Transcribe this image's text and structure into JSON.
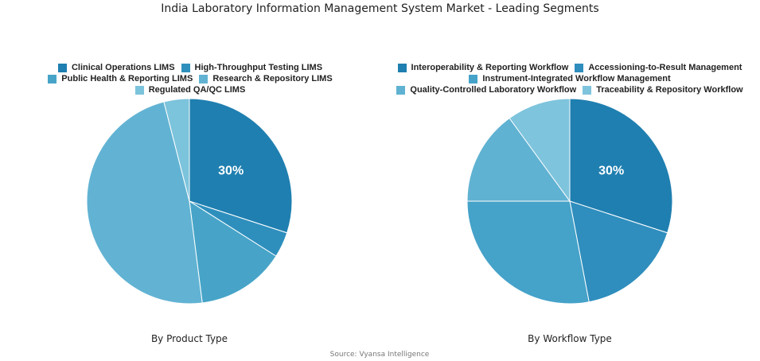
{
  "title": "India Laboratory Information Management System Market - Leading Segments",
  "source": "Source: Vyansa Intelligence",
  "chart_data": [
    {
      "type": "pie",
      "title": "By Product Type",
      "categories": [
        "Clinical Operations LIMS",
        "High-Throughput Testing LIMS",
        "Public Health & Reporting LIMS",
        "Research & Repository LIMS",
        "Regulated QA/QC LIMS"
      ],
      "values": [
        30,
        4,
        14,
        48,
        4
      ],
      "value_labels": [
        "30%",
        null,
        null,
        null,
        null
      ],
      "colors": [
        "#1f7fb0",
        "#2e8fbd",
        "#47a4c8",
        "#62b3d3",
        "#7cc3dc"
      ]
    },
    {
      "type": "pie",
      "title": "By Workflow Type",
      "categories": [
        "Interoperability & Reporting Workflow",
        "Accessioning-to-Result Management",
        "Instrument-Integrated Workflow Management",
        "Quality-Controlled Laboratory Workflow",
        "Traceability & Repository Workflow"
      ],
      "values": [
        30,
        17,
        28,
        15,
        10
      ],
      "value_labels": [
        "30%",
        null,
        null,
        null,
        null
      ],
      "colors": [
        "#1f7fb0",
        "#2f8ebd",
        "#45a2c9",
        "#60b2d2",
        "#7ec4dd"
      ]
    }
  ]
}
